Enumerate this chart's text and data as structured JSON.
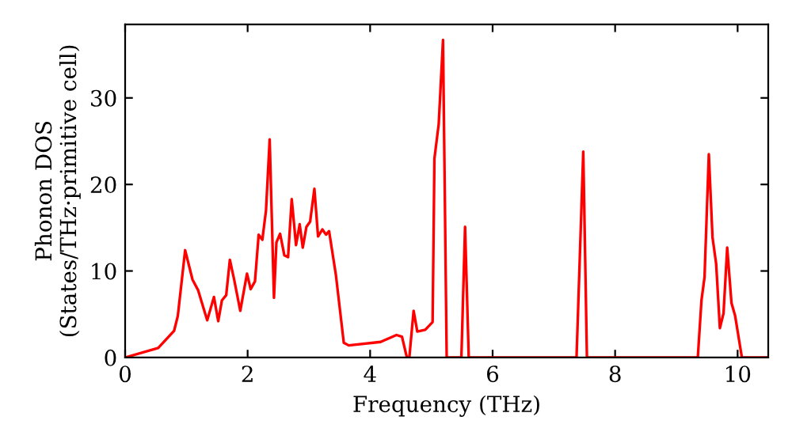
{
  "chart_data": {
    "type": "line",
    "xlabel": "Frequency (THz)",
    "ylabel": "Phonon DOS\n(States/THz·primitive cell)",
    "xlim": [
      0,
      10.5
    ],
    "ylim": [
      0,
      38.5
    ],
    "xticks": [
      0,
      2,
      4,
      6,
      8,
      10
    ],
    "yticks": [
      0,
      10,
      20,
      30
    ],
    "grid": false,
    "legend": false,
    "marker": "none",
    "line_style": "solid",
    "series": [
      {
        "color": "#ff0000",
        "x": [
          0,
          0.54,
          0.8,
          0.86,
          0.98,
          1.1,
          1.19,
          1.34,
          1.45,
          1.52,
          1.58,
          1.65,
          1.71,
          1.78,
          1.88,
          1.99,
          2.05,
          2.12,
          2.18,
          2.24,
          2.3,
          2.36,
          2.43,
          2.47,
          2.53,
          2.6,
          2.66,
          2.72,
          2.79,
          2.85,
          2.9,
          2.96,
          3.02,
          3.09,
          3.15,
          3.22,
          3.28,
          3.33,
          3.44,
          3.57,
          3.65,
          4.17,
          4.43,
          4.52,
          4.6,
          4.64,
          4.71,
          4.77,
          4.9,
          5.02,
          5.05,
          5.12,
          5.19,
          5.25,
          5.49,
          5.55,
          5.61,
          7.37,
          7.48,
          7.54,
          9.35,
          9.41,
          9.46,
          9.53,
          9.59,
          9.65,
          9.71,
          9.77,
          9.83,
          9.9,
          9.96,
          10.07,
          10.5
        ],
        "values": [
          0,
          1.1,
          3.1,
          4.8,
          12.4,
          9,
          7.8,
          4.3,
          7,
          4.2,
          6.6,
          7.2,
          11.3,
          9,
          5.4,
          9.7,
          7.9,
          8.8,
          14.2,
          13.6,
          17,
          25.2,
          6.9,
          13.3,
          14.3,
          11.8,
          11.6,
          18.3,
          13,
          15.4,
          12.7,
          15.1,
          15.7,
          19.5,
          14,
          14.8,
          14.2,
          14.6,
          9.6,
          1.7,
          1.4,
          1.8,
          2.6,
          2.4,
          0,
          0,
          5.4,
          3,
          3.2,
          4.1,
          23,
          27,
          36.7,
          0,
          0,
          15.1,
          0,
          0,
          23.8,
          0,
          0,
          6.6,
          9.3,
          23.5,
          13.9,
          10.8,
          3.4,
          5.1,
          12.7,
          6.3,
          4.8,
          0,
          0
        ]
      }
    ]
  }
}
